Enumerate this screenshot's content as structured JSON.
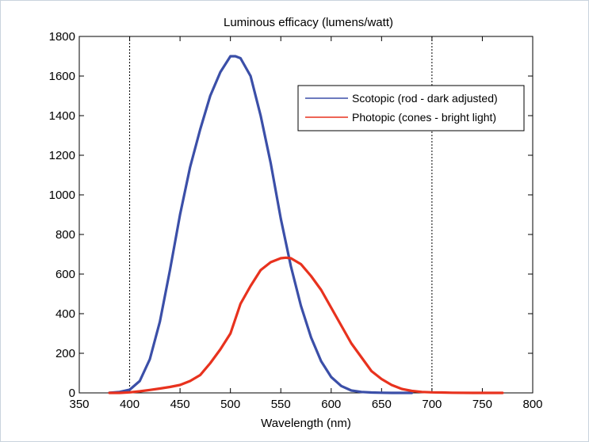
{
  "chart_data": {
    "type": "line",
    "title": "Luminous efficacy (lumens/watt)",
    "xlabel": "Wavelength (nm)",
    "ylabel": "",
    "xlim": [
      350,
      800
    ],
    "ylim": [
      0,
      1800
    ],
    "xticks": [
      350,
      400,
      450,
      500,
      550,
      600,
      650,
      700,
      750,
      800
    ],
    "yticks": [
      0,
      200,
      400,
      600,
      800,
      1000,
      1200,
      1400,
      1600,
      1800
    ],
    "grid": false,
    "legend_position": "top-right",
    "reference_lines_x": [
      400,
      700
    ],
    "series": [
      {
        "name": "Scotopic (rod - dark adjusted)",
        "color": "#3b4fa8",
        "x": [
          380,
          390,
          400,
          410,
          420,
          430,
          440,
          450,
          460,
          470,
          480,
          490,
          500,
          505,
          510,
          520,
          530,
          540,
          550,
          560,
          570,
          580,
          590,
          600,
          610,
          620,
          630,
          640,
          650,
          660,
          670,
          680
        ],
        "y": [
          1,
          5,
          16,
          60,
          170,
          360,
          620,
          900,
          1140,
          1330,
          1500,
          1620,
          1700,
          1700,
          1690,
          1600,
          1400,
          1160,
          880,
          640,
          440,
          280,
          160,
          80,
          35,
          12,
          5,
          2,
          1,
          0,
          0,
          0
        ]
      },
      {
        "name": "Photopic (cones - bright light)",
        "color": "#e8321e",
        "x": [
          380,
          390,
          400,
          410,
          420,
          430,
          440,
          450,
          460,
          470,
          480,
          490,
          500,
          510,
          520,
          530,
          540,
          550,
          555,
          560,
          570,
          580,
          590,
          600,
          610,
          620,
          630,
          640,
          650,
          660,
          670,
          680,
          690,
          700,
          710,
          720,
          740,
          760,
          770
        ],
        "y": [
          0,
          0,
          3,
          8,
          15,
          22,
          30,
          40,
          60,
          90,
          150,
          220,
          300,
          450,
          540,
          620,
          660,
          680,
          683,
          680,
          650,
          590,
          520,
          430,
          340,
          250,
          180,
          110,
          70,
          40,
          20,
          10,
          5,
          3,
          2,
          1,
          0,
          0,
          0
        ]
      }
    ]
  }
}
